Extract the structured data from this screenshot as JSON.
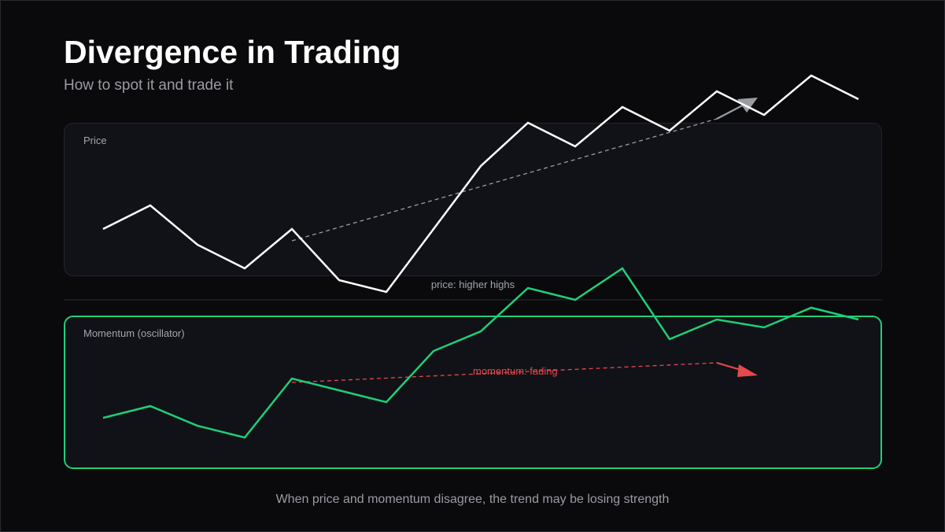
{
  "header": {
    "title": "Divergence in Trading",
    "subtitle": "How to spot it and trade it"
  },
  "footnote": "When price and momentum disagree, the trend may be losing strength",
  "colors": {
    "background": "#0a0a0d",
    "panel": "#111217",
    "price_line": "#ffffff",
    "price_trend": "#9a9ca3",
    "momentum_line": "#1fcf78",
    "momentum_trend": "#e5484d"
  },
  "chart_data": [
    {
      "type": "line",
      "panel_label": "Price",
      "caption": "price: higher highs",
      "x": [
        0,
        1,
        2,
        3,
        4,
        5,
        6,
        7,
        8,
        9,
        10,
        11,
        12,
        13,
        14,
        15,
        16
      ],
      "series": [
        {
          "values": [
            40,
            46,
            36,
            30,
            40,
            27,
            24,
            40,
            56,
            67,
            61,
            71,
            65,
            75,
            69,
            79,
            73
          ]
        }
      ],
      "trendline": {
        "from": [
          4,
          37
        ],
        "to": [
          13,
          68
        ],
        "style": "dashed-arrow"
      },
      "grid": false
    },
    {
      "type": "line",
      "panel_label": "Momentum (oscillator)",
      "annotation": "momentum: fading",
      "x": [
        0,
        1,
        2,
        3,
        4,
        5,
        6,
        7,
        8,
        9,
        10,
        11,
        12,
        13,
        14,
        15,
        16
      ],
      "series": [
        {
          "values": [
            30,
            33,
            28,
            25,
            40,
            37,
            34,
            47,
            52,
            63,
            60,
            68,
            50,
            55,
            53,
            58,
            55
          ]
        }
      ],
      "trendline": {
        "from": [
          4,
          39
        ],
        "to": [
          13,
          44
        ],
        "style": "dashed-arrow"
      },
      "grid": false
    }
  ]
}
